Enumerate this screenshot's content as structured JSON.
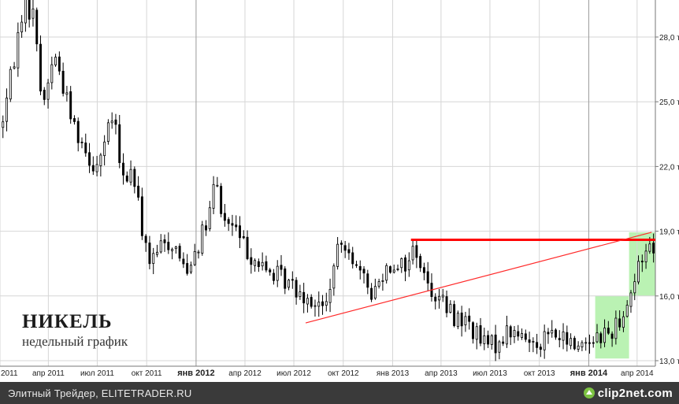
{
  "footer": {
    "source": "Элитный Трейдер, ELITETRADER.RU",
    "brand": "clip2net.com"
  },
  "overlay": {
    "title": "НИКЕЛЬ",
    "subtitle": "недельный график"
  },
  "colors": {
    "background": "#ffffff",
    "grid": "#d6d6d6",
    "candle": "#000000",
    "resistance": "#ff0000",
    "trendline": "#ff2a2a",
    "highlight": "#aef0a6",
    "footer": "#3a3a3a"
  },
  "chart_data": {
    "type": "candlestick",
    "timeframe": "weekly",
    "y_axis": {
      "ylim": [
        12.8,
        30.0
      ],
      "ticks": [
        13.0,
        16.0,
        19.0,
        22.0,
        25.0,
        28.0
      ],
      "labels": [
        "13,0 т",
        "16,0 т",
        "19,0 т",
        "22,0 т",
        "25,0 т",
        "28,0 т"
      ]
    },
    "x_axis": {
      "range": [
        "2011-01-01",
        "2014-05-05"
      ],
      "ticks": [
        {
          "date": "2011-01-01",
          "label": "2011",
          "bold": false
        },
        {
          "date": "2011-04-01",
          "label": "апр 2011",
          "bold": false
        },
        {
          "date": "2011-07-01",
          "label": "июл 2011",
          "bold": false
        },
        {
          "date": "2011-10-01",
          "label": "окт 2011",
          "bold": false
        },
        {
          "date": "2012-01-01",
          "label": "янв 2012",
          "bold": true
        },
        {
          "date": "2012-04-01",
          "label": "апр 2012",
          "bold": false
        },
        {
          "date": "2012-07-01",
          "label": "июл 2012",
          "bold": false
        },
        {
          "date": "2012-10-01",
          "label": "окт 2012",
          "bold": false
        },
        {
          "date": "2013-01-01",
          "label": "янв 2013",
          "bold": false
        },
        {
          "date": "2013-04-01",
          "label": "апр 2013",
          "bold": false
        },
        {
          "date": "2013-07-01",
          "label": "июл 2013",
          "bold": false
        },
        {
          "date": "2013-10-01",
          "label": "окт 2013",
          "bold": false
        },
        {
          "date": "2014-01-01",
          "label": "янв 2014",
          "bold": true
        },
        {
          "date": "2014-04-01",
          "label": "апр 2014",
          "bold": false
        }
      ]
    },
    "grid": true,
    "path": [
      [
        "2011-01-03",
        23.8
      ],
      [
        "2011-01-24",
        26.5
      ],
      [
        "2011-02-14",
        29.6
      ],
      [
        "2011-03-07",
        28.9
      ],
      [
        "2011-03-21",
        24.6
      ],
      [
        "2011-04-11",
        27.3
      ],
      [
        "2011-04-25",
        26.1
      ],
      [
        "2011-05-16",
        24.1
      ],
      [
        "2011-06-06",
        23.0
      ],
      [
        "2011-06-27",
        21.9
      ],
      [
        "2011-07-18",
        23.3
      ],
      [
        "2011-08-01",
        24.5
      ],
      [
        "2011-08-15",
        21.3
      ],
      [
        "2011-09-05",
        21.8
      ],
      [
        "2011-09-26",
        18.6
      ],
      [
        "2011-10-10",
        17.4
      ],
      [
        "2011-10-31",
        18.5
      ],
      [
        "2011-11-21",
        18.4
      ],
      [
        "2011-12-12",
        17.2
      ],
      [
        "2012-01-02",
        18.3
      ],
      [
        "2012-01-23",
        19.4
      ],
      [
        "2012-02-06",
        21.4
      ],
      [
        "2012-02-20",
        19.5
      ],
      [
        "2012-03-12",
        19.2
      ],
      [
        "2012-04-02",
        18.2
      ],
      [
        "2012-05-07",
        17.2
      ],
      [
        "2012-06-04",
        16.9
      ],
      [
        "2012-07-09",
        16.3
      ],
      [
        "2012-08-06",
        15.8
      ],
      [
        "2012-08-27",
        15.3
      ],
      [
        "2012-09-10",
        16.9
      ],
      [
        "2012-09-24",
        18.3
      ],
      [
        "2012-10-08",
        18.6
      ],
      [
        "2012-10-29",
        17.0
      ],
      [
        "2012-11-26",
        16.1
      ],
      [
        "2012-12-17",
        17.3
      ],
      [
        "2013-01-07",
        17.6
      ],
      [
        "2013-01-28",
        17.4
      ],
      [
        "2013-02-11",
        18.4
      ],
      [
        "2013-03-04",
        16.6
      ],
      [
        "2013-04-01",
        15.8
      ],
      [
        "2013-04-22",
        15.1
      ],
      [
        "2013-05-20",
        14.8
      ],
      [
        "2013-06-17",
        13.8
      ],
      [
        "2013-07-08",
        13.7
      ],
      [
        "2013-08-05",
        14.4
      ],
      [
        "2013-09-02",
        14.0
      ],
      [
        "2013-09-30",
        13.9
      ],
      [
        "2013-10-21",
        14.3
      ],
      [
        "2013-11-18",
        13.9
      ],
      [
        "2013-12-09",
        13.7
      ],
      [
        "2013-12-30",
        14.0
      ],
      [
        "2014-01-20",
        14.2
      ],
      [
        "2014-02-10",
        14.3
      ],
      [
        "2014-03-03",
        15.1
      ],
      [
        "2014-03-17",
        15.9
      ],
      [
        "2014-04-07",
        17.6
      ],
      [
        "2014-04-21",
        18.4
      ],
      [
        "2014-04-28",
        18.4
      ]
    ],
    "annotations": [
      {
        "type": "horizontal_line",
        "name": "resistance",
        "from": "2013-02-04",
        "to": "2014-05-05",
        "value": 18.6,
        "color": "#ff0000"
      },
      {
        "type": "trendline",
        "name": "support",
        "from": [
          "2012-07-23",
          14.75
        ],
        "to": [
          "2014-04-28",
          18.95
        ],
        "color": "#ff2a2a"
      },
      {
        "type": "shaded_zone",
        "name": "breakout-zone",
        "from": "2014-01-13",
        "to": "2014-03-17",
        "y": [
          13.1,
          16.0
        ],
        "color": "#aef0a6"
      },
      {
        "type": "shaded_zone",
        "name": "breakout-zone-upper",
        "from": "2014-03-17",
        "to": "2014-05-05",
        "y": [
          16.0,
          18.95
        ],
        "color": "#aef0a6"
      }
    ]
  }
}
